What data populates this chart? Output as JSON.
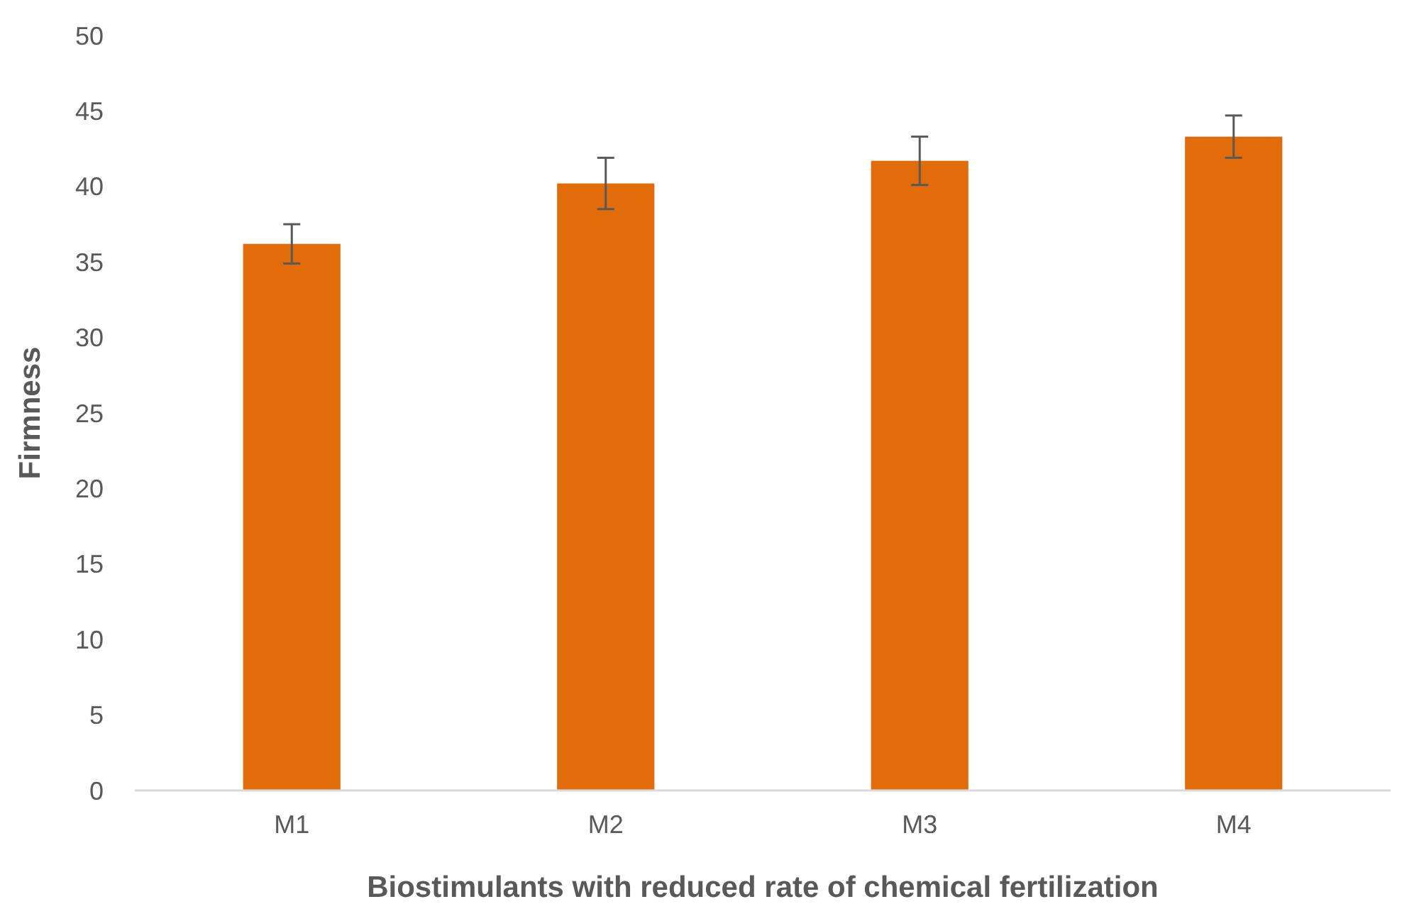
{
  "chart_data": {
    "type": "bar",
    "xlabel": "Biostimulants with reduced rate of chemical fertilization",
    "ylabel": "Firmness",
    "categories": [
      "M1",
      "M2",
      "M3",
      "M4"
    ],
    "values": [
      36.2,
      40.2,
      41.7,
      43.3
    ],
    "errors": [
      1.3,
      1.7,
      1.6,
      1.4
    ],
    "color": "#e36c0a",
    "ylim": [
      0,
      50
    ],
    "yticks": [
      0,
      5,
      10,
      15,
      20,
      25,
      30,
      35,
      40,
      45,
      50
    ],
    "grid": false
  }
}
